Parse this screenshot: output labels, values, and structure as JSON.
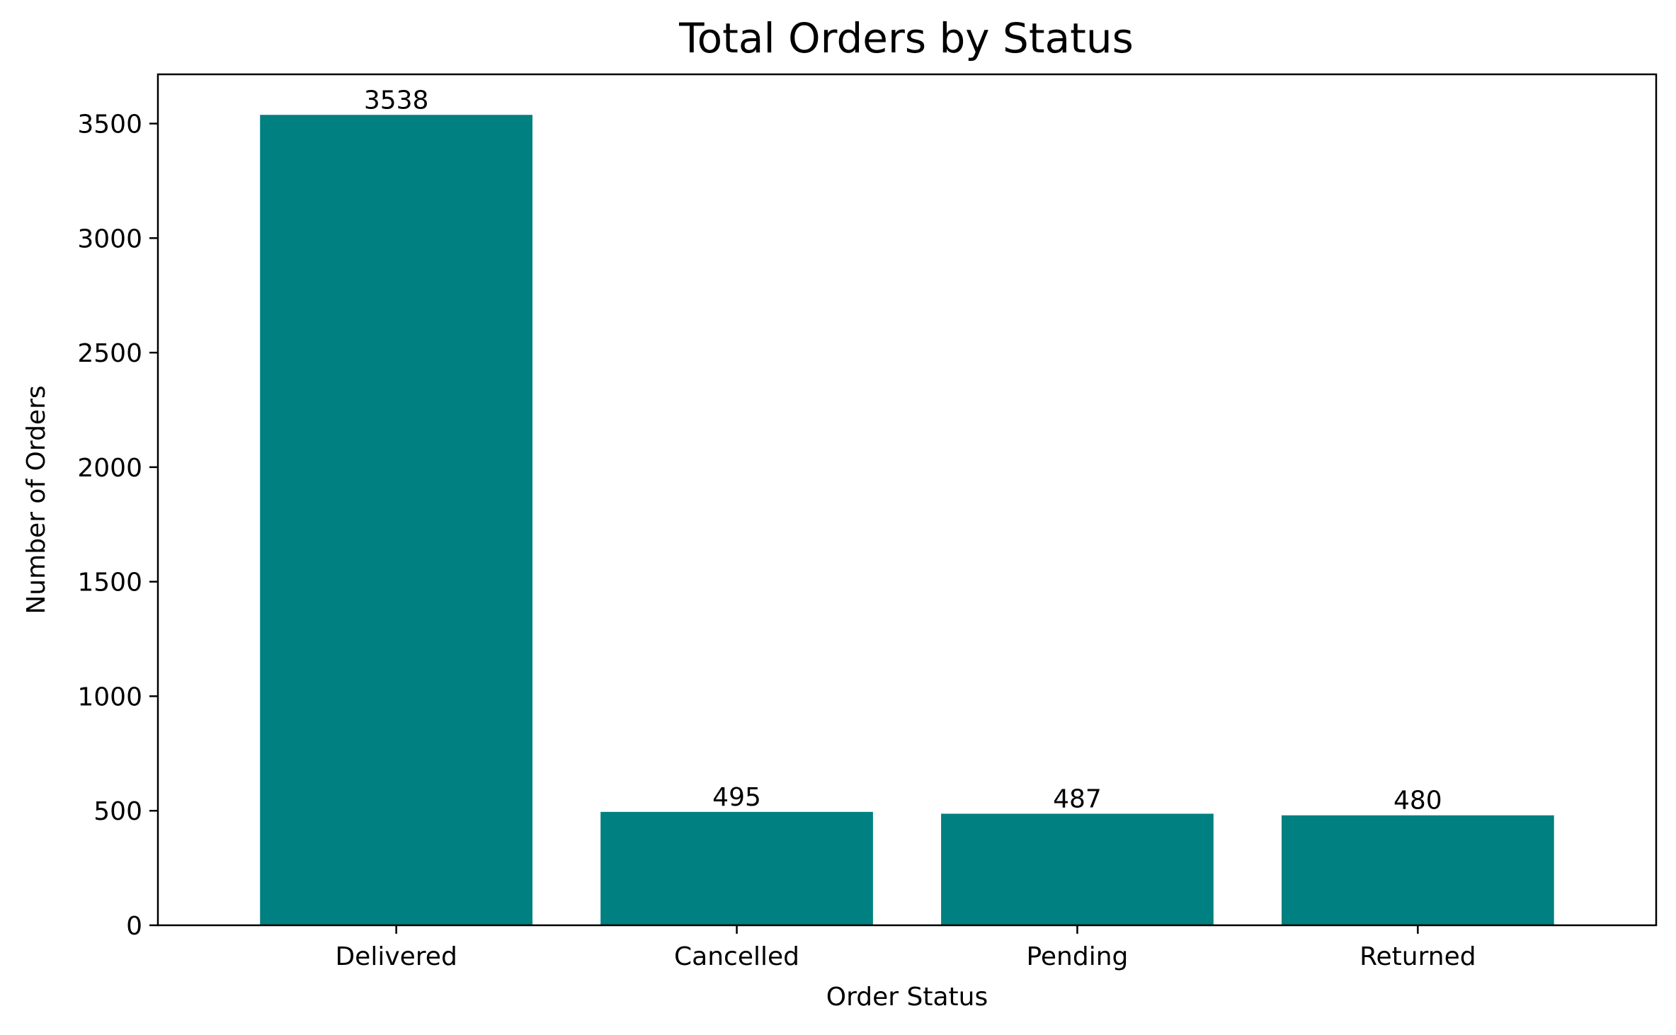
{
  "chart_data": {
    "type": "bar",
    "title": "Total Orders by Status",
    "xlabel": "Order Status",
    "ylabel": "Number of Orders",
    "categories": [
      "Delivered",
      "Cancelled",
      "Pending",
      "Returned"
    ],
    "values": [
      3538,
      495,
      487,
      480
    ],
    "data_labels": [
      "3538",
      "495",
      "487",
      "480"
    ],
    "ylim": [
      0,
      3715
    ],
    "yticks": [
      0,
      500,
      1000,
      1500,
      2000,
      2500,
      3000,
      3500
    ],
    "ytick_labels": [
      "0",
      "500",
      "1000",
      "1500",
      "2000",
      "2500",
      "3000",
      "3500"
    ],
    "bar_color": "#008080",
    "grid": false,
    "legend": "none"
  }
}
